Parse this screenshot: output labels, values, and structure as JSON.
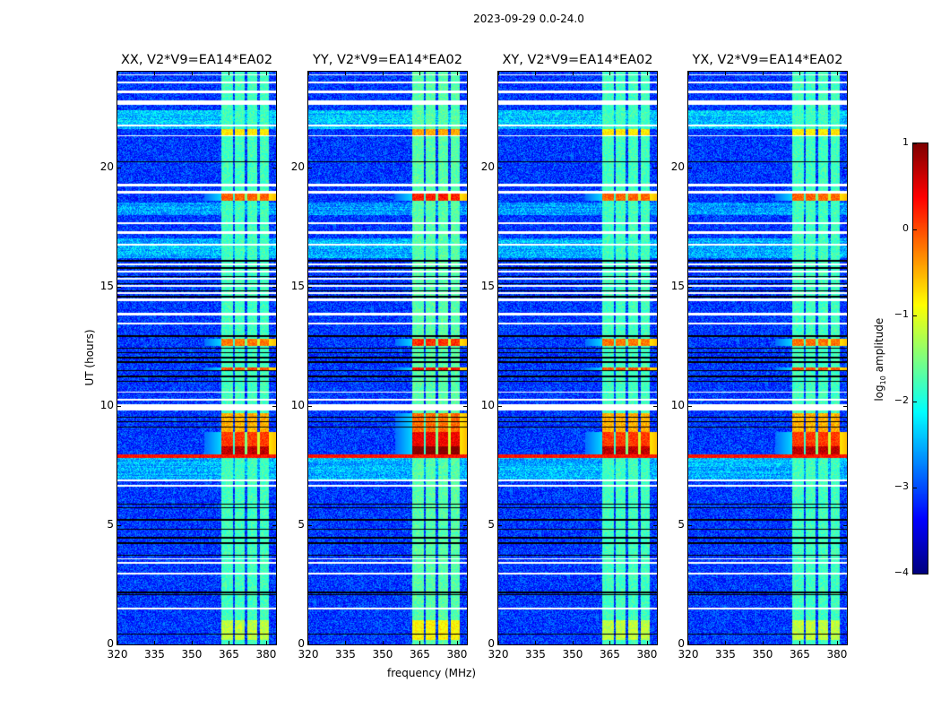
{
  "suptitle": "2023-09-29 0.0-24.0",
  "xlabel": "frequency (MHz)",
  "ylabel": "UT (hours)",
  "colorbar": {
    "label_prefix": "log",
    "label_sub": "10",
    "label_suffix": " amplitude",
    "range": [
      -4,
      1
    ],
    "ticks": [
      1,
      0,
      -1,
      -2,
      -3,
      -4
    ],
    "tick_labels": [
      "1",
      "0",
      "−1",
      "−2",
      "−3",
      "−4"
    ],
    "colormap": "jet"
  },
  "chart_data": [
    {
      "type": "heatmap",
      "title": "XX, V2*V9=EA14*EA02",
      "signal_gain": 0.0
    },
    {
      "type": "heatmap",
      "title": "YY, V2*V9=EA14*EA02",
      "signal_gain": 0.35
    },
    {
      "type": "heatmap",
      "title": "XY, V2*V9=EA14*EA02",
      "signal_gain": 0.0
    },
    {
      "type": "heatmap",
      "title": "YX, V2*V9=EA14*EA02",
      "signal_gain": 0.0
    }
  ],
  "axes": {
    "xlim": [
      320,
      384
    ],
    "ylim": [
      0,
      24
    ],
    "xticks": [
      320,
      335,
      350,
      365,
      380
    ],
    "xtick_labels": [
      "320",
      "335",
      "350",
      "365",
      "380"
    ],
    "yticks": [
      0,
      5,
      10,
      15,
      20
    ],
    "ytick_labels": [
      "0",
      "5",
      "10",
      "15",
      "20"
    ]
  },
  "waterfall": {
    "background_level": -3.1,
    "signal_bands_mhz": [
      [
        362,
        366.5
      ],
      [
        367.5,
        371.5
      ],
      [
        372.5,
        376.5
      ],
      [
        377.5,
        381
      ]
    ],
    "signal_level": -1.8,
    "signal_bursts_hours": [
      {
        "range": [
          7.9,
          8.3
        ],
        "level": 0.7
      },
      {
        "range": [
          8.3,
          8.9
        ],
        "level": 0.1
      },
      {
        "range": [
          8.9,
          9.7
        ],
        "level": -0.5
      },
      {
        "range": [
          11.5,
          11.6
        ],
        "level": 0.0
      },
      {
        "range": [
          12.5,
          12.8
        ],
        "level": -0.2
      },
      {
        "range": [
          18.6,
          18.9
        ],
        "level": -0.1
      },
      {
        "range": [
          0.2,
          1.0
        ],
        "level": -1.2
      },
      {
        "range": [
          21.3,
          21.6
        ],
        "level": -0.8
      }
    ],
    "broadband_rfi_hours": [
      {
        "range": [
          7.8,
          7.95
        ],
        "level": 0.3
      }
    ],
    "elevated_rows_hours": [
      {
        "range": [
          6.9,
          7.8
        ],
        "level": -2.5
      },
      {
        "range": [
          16.2,
          17.0
        ],
        "level": -2.5
      },
      {
        "range": [
          21.6,
          22.4
        ],
        "level": -2.4
      },
      {
        "range": [
          18.0,
          18.5
        ],
        "level": -2.6
      }
    ],
    "flagged_rows_hours": [
      [
        1.45,
        1.55
      ],
      [
        2.92,
        3.0
      ],
      [
        3.38,
        3.45
      ],
      [
        3.55,
        3.6
      ],
      [
        6.6,
        6.68
      ],
      [
        6.85,
        6.9
      ],
      [
        9.8,
        10.05
      ],
      [
        10.2,
        10.3
      ],
      [
        10.55,
        10.6
      ],
      [
        13.4,
        13.5
      ],
      [
        13.8,
        13.9
      ],
      [
        14.4,
        14.5
      ],
      [
        14.7,
        14.75
      ],
      [
        15.0,
        15.05
      ],
      [
        15.3,
        15.35
      ],
      [
        15.6,
        15.65
      ],
      [
        15.9,
        15.95
      ],
      [
        16.7,
        16.8
      ],
      [
        17.2,
        17.3
      ],
      [
        17.6,
        17.7
      ],
      [
        18.9,
        19.0
      ],
      [
        19.2,
        19.3
      ],
      [
        21.3,
        21.35
      ],
      [
        21.7,
        21.8
      ],
      [
        22.6,
        22.8
      ],
      [
        23.1,
        23.2
      ],
      [
        23.5,
        23.6
      ],
      [
        23.85,
        23.9
      ]
    ],
    "blank_rows_hours": [
      [
        0.4,
        0.44
      ],
      [
        0.55,
        0.58
      ],
      [
        2.05,
        2.1
      ],
      [
        2.15,
        2.2
      ],
      [
        3.7,
        3.75
      ],
      [
        4.2,
        4.27
      ],
      [
        4.45,
        4.5
      ],
      [
        4.8,
        4.85
      ],
      [
        5.2,
        5.27
      ],
      [
        5.7,
        5.75
      ],
      [
        5.85,
        5.9
      ],
      [
        8.4,
        8.43
      ],
      [
        9.1,
        9.14
      ],
      [
        9.3,
        9.34
      ],
      [
        9.5,
        9.54
      ],
      [
        11.0,
        11.05
      ],
      [
        11.2,
        11.25
      ],
      [
        11.45,
        11.5
      ],
      [
        11.8,
        11.85
      ],
      [
        12.0,
        12.05
      ],
      [
        12.2,
        12.25
      ],
      [
        12.4,
        12.45
      ],
      [
        12.9,
        12.95
      ],
      [
        14.55,
        14.6
      ],
      [
        14.8,
        14.85
      ],
      [
        15.1,
        15.15
      ],
      [
        15.4,
        15.45
      ],
      [
        15.75,
        15.8
      ],
      [
        16.05,
        16.1
      ],
      [
        20.2,
        20.25
      ]
    ]
  }
}
